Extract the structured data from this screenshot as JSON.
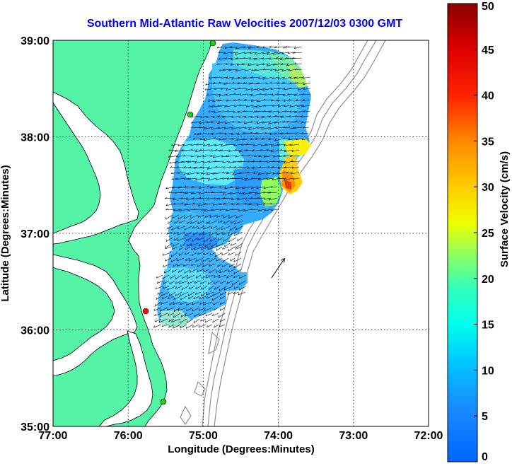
{
  "title": "Southern Mid-Atlantic Raw Velocities 2007/12/03 0300 GMT",
  "title_color": "#0000ff",
  "xlabel": "Longitude (Degrees:Minutes)",
  "ylabel": "Latitude (Degrees:Minutes)",
  "x_ticks": [
    "77:00",
    "76:00",
    "75:00",
    "74:00",
    "73:00",
    "72:00"
  ],
  "y_ticks": [
    "39:00",
    "38:00",
    "37:00",
    "36:00",
    "35:00"
  ],
  "colorbar": {
    "label": "Surface Velocity (cm/s)",
    "ticks": [
      "0",
      "5",
      "10",
      "15",
      "20",
      "25",
      "30",
      "35",
      "40",
      "45",
      "50"
    ],
    "range": [
      0,
      50
    ]
  },
  "colors": {
    "land": "#55f3a6",
    "ocean": "#ffffff",
    "coastline": "#000000",
    "bathymetry": "#909090",
    "site_active": "#22cc22",
    "site_inactive": "#ee1111"
  },
  "chart_data": {
    "type": "heatmap",
    "title": "Southern Mid-Atlantic Raw Velocities 2007/12/03 0300 GMT",
    "xlabel": "Longitude (Degrees:Minutes)",
    "ylabel": "Latitude (Degrees:Minutes)",
    "xlim": [
      -77,
      -72
    ],
    "ylim": [
      35,
      39
    ],
    "grid": "dotted",
    "colorbar_label": "Surface Velocity (cm/s)",
    "colorbar_range": [
      0,
      50
    ],
    "stations": [
      {
        "lon": -74.91,
        "lat": 39.0,
        "status": "active"
      },
      {
        "lon": -75.16,
        "lat": 38.22,
        "status": "active"
      },
      {
        "lon": -75.7,
        "lat": 36.18,
        "status": "inactive"
      },
      {
        "lon": -75.52,
        "lat": 35.27,
        "status": "active"
      }
    ],
    "high_speed_zone": {
      "lon": [
        -74.05,
        -73.7
      ],
      "lat": [
        37.3,
        37.85
      ],
      "max_speed": 42
    }
  }
}
